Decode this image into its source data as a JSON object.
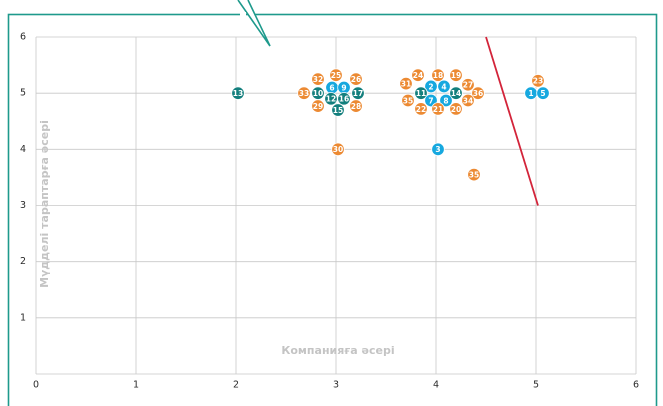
{
  "chart_data": {
    "type": "scatter",
    "title": "",
    "xlabel": "Компанияға әсері",
    "ylabel": "Мүдделі тараптарға әсері",
    "xlim": [
      0,
      6
    ],
    "ylim": [
      0,
      6
    ],
    "x_ticks": [
      "0",
      "1",
      "2",
      "3",
      "4",
      "5",
      "6"
    ],
    "y_ticks": [
      "1",
      "2",
      "3",
      "4",
      "5",
      "6"
    ],
    "grid": true,
    "colors": {
      "orange": "#ec8a33",
      "blue": "#16a8df",
      "teal": "#137f7d",
      "line": "#d3243a",
      "frame": "#1e9a8c",
      "grid": "#c8c8c8"
    },
    "threshold_line": {
      "x": [
        4.5,
        5.02
      ],
      "y": [
        6.0,
        3.0
      ]
    },
    "points": [
      {
        "label": "13",
        "x": 2.02,
        "y": 5.0,
        "color": "teal"
      },
      {
        "label": "25",
        "x": 3.0,
        "y": 5.32,
        "color": "orange"
      },
      {
        "label": "32",
        "x": 2.82,
        "y": 5.25,
        "color": "orange"
      },
      {
        "label": "26",
        "x": 3.2,
        "y": 5.25,
        "color": "orange"
      },
      {
        "label": "6",
        "x": 2.96,
        "y": 5.1,
        "color": "blue"
      },
      {
        "label": "9",
        "x": 3.08,
        "y": 5.1,
        "color": "blue"
      },
      {
        "label": "33",
        "x": 2.68,
        "y": 5.0,
        "color": "orange"
      },
      {
        "label": "10",
        "x": 2.82,
        "y": 5.0,
        "color": "teal"
      },
      {
        "label": "17",
        "x": 3.22,
        "y": 5.0,
        "color": "teal"
      },
      {
        "label": "12",
        "x": 2.95,
        "y": 4.9,
        "color": "teal"
      },
      {
        "label": "16",
        "x": 3.08,
        "y": 4.9,
        "color": "teal"
      },
      {
        "label": "29",
        "x": 2.82,
        "y": 4.77,
        "color": "orange"
      },
      {
        "label": "28",
        "x": 3.2,
        "y": 4.77,
        "color": "orange"
      },
      {
        "label": "15",
        "x": 3.02,
        "y": 4.7,
        "color": "teal"
      },
      {
        "label": "30",
        "x": 3.02,
        "y": 4.0,
        "color": "orange"
      },
      {
        "label": "24",
        "x": 3.82,
        "y": 5.32,
        "color": "orange"
      },
      {
        "label": "18",
        "x": 4.02,
        "y": 5.32,
        "color": "orange"
      },
      {
        "label": "19",
        "x": 4.2,
        "y": 5.32,
        "color": "orange"
      },
      {
        "label": "31",
        "x": 3.7,
        "y": 5.17,
        "color": "orange"
      },
      {
        "label": "2",
        "x": 3.95,
        "y": 5.12,
        "color": "blue"
      },
      {
        "label": "4",
        "x": 4.08,
        "y": 5.12,
        "color": "blue"
      },
      {
        "label": "27",
        "x": 4.32,
        "y": 5.15,
        "color": "orange"
      },
      {
        "label": "11",
        "x": 3.85,
        "y": 5.0,
        "color": "teal"
      },
      {
        "label": "14",
        "x": 4.2,
        "y": 5.0,
        "color": "teal"
      },
      {
        "label": "36",
        "x": 4.42,
        "y": 5.0,
        "color": "orange"
      },
      {
        "label": "35",
        "x": 3.72,
        "y": 4.87,
        "color": "orange"
      },
      {
        "label": "7",
        "x": 3.95,
        "y": 4.87,
        "color": "blue"
      },
      {
        "label": "8",
        "x": 4.1,
        "y": 4.87,
        "color": "blue"
      },
      {
        "label": "34",
        "x": 4.32,
        "y": 4.87,
        "color": "orange"
      },
      {
        "label": "22",
        "x": 3.85,
        "y": 4.72,
        "color": "orange"
      },
      {
        "label": "21",
        "x": 4.02,
        "y": 4.72,
        "color": "orange"
      },
      {
        "label": "20",
        "x": 4.2,
        "y": 4.72,
        "color": "orange"
      },
      {
        "label": "3",
        "x": 4.02,
        "y": 4.0,
        "color": "blue"
      },
      {
        "label": "35",
        "x": 4.38,
        "y": 3.55,
        "color": "orange"
      },
      {
        "label": "23",
        "x": 5.02,
        "y": 5.22,
        "color": "orange"
      },
      {
        "label": "1",
        "x": 4.95,
        "y": 5.0,
        "color": "blue"
      },
      {
        "label": "5",
        "x": 5.07,
        "y": 5.0,
        "color": "blue"
      }
    ]
  }
}
